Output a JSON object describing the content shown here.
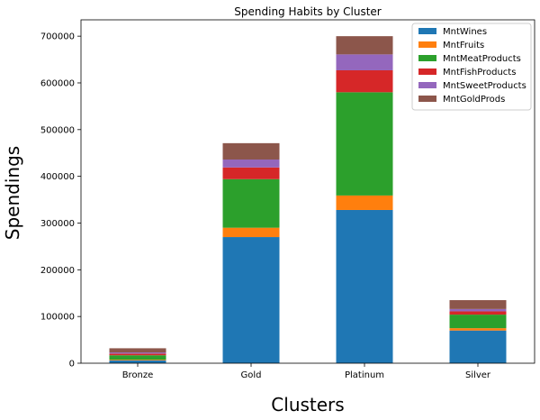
{
  "chart_data": {
    "type": "bar",
    "stacked": true,
    "title": "Spending Habits by Cluster",
    "xlabel": "Clusters",
    "ylabel": "Spendings",
    "categories": [
      "Bronze",
      "Gold",
      "Platinum",
      "Silver"
    ],
    "ylim": [
      0,
      735000
    ],
    "yticks": [
      0,
      100000,
      200000,
      300000,
      400000,
      500000,
      600000,
      700000
    ],
    "ytick_labels": [
      "0",
      "100000",
      "200000",
      "300000",
      "400000",
      "500000",
      "600000",
      "700000"
    ],
    "legend_position": "top-right",
    "grid": false,
    "series": [
      {
        "name": "MntWines",
        "color": "#1f77b4",
        "values": [
          6000,
          270000,
          328000,
          70000
        ]
      },
      {
        "name": "MntFruits",
        "color": "#ff7f0e",
        "values": [
          1500,
          20000,
          31000,
          5000
        ]
      },
      {
        "name": "MntMeatProducts",
        "color": "#2ca02c",
        "values": [
          9500,
          104000,
          221000,
          29000
        ]
      },
      {
        "name": "MntFishProducts",
        "color": "#d62728",
        "values": [
          3500,
          25000,
          47000,
          7000
        ]
      },
      {
        "name": "MntSweetProducts",
        "color": "#9467bd",
        "values": [
          2500,
          17000,
          34000,
          5000
        ]
      },
      {
        "name": "MntGoldProds",
        "color": "#8c564b",
        "values": [
          9000,
          35000,
          39000,
          19000
        ]
      }
    ]
  }
}
